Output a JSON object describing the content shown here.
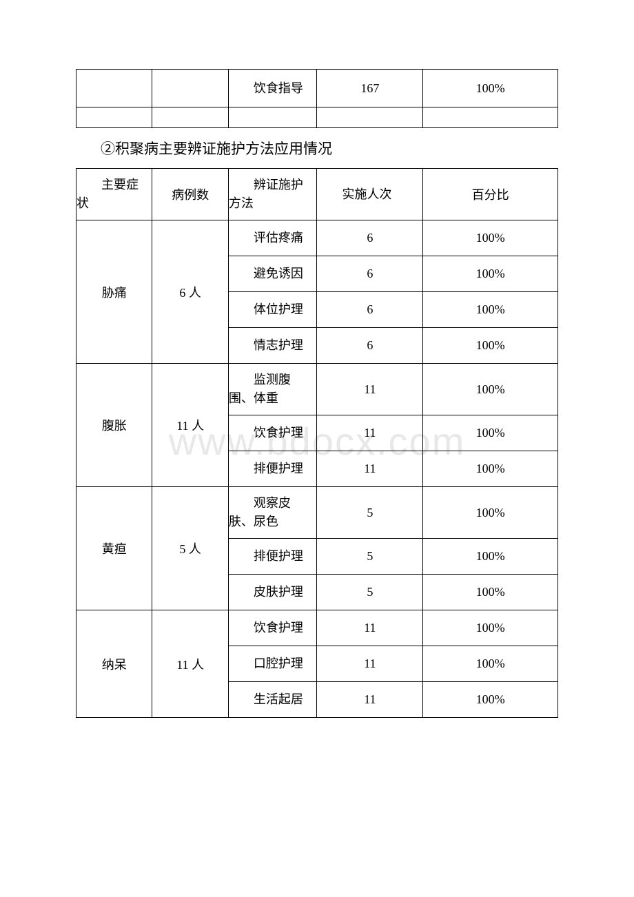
{
  "watermark": "www.bdocx.com",
  "table1": {
    "methodCell": "饮食指导",
    "countCell": "167",
    "percentCell": "100%"
  },
  "sectionTitle": "②积聚病主要辨证施护方法应用情况",
  "table2": {
    "headers": {
      "symptom": "主要症状",
      "cases": "病例数",
      "method": "辨证施护方法",
      "count": "实施人次",
      "percent": "百分比"
    },
    "groups": [
      {
        "symptom": "胁痛",
        "cases": "6 人",
        "rows": [
          {
            "method": "评估疼痛",
            "count": "6",
            "percent": "100%"
          },
          {
            "method": "避免诱因",
            "count": "6",
            "percent": "100%"
          },
          {
            "method": "体位护理",
            "count": "6",
            "percent": "100%"
          },
          {
            "method": "情志护理",
            "count": "6",
            "percent": "100%"
          }
        ]
      },
      {
        "symptom": "腹胀",
        "cases": "11 人",
        "rows": [
          {
            "method": "监测腹围、体重",
            "count": "11",
            "percent": "100%"
          },
          {
            "method": "饮食护理",
            "count": "11",
            "percent": "100%"
          },
          {
            "method": "排便护理",
            "count": "11",
            "percent": "100%"
          }
        ]
      },
      {
        "symptom": "黄疸",
        "cases": "5 人",
        "rows": [
          {
            "method": "观察皮肤、尿色",
            "count": "5",
            "percent": "100%"
          },
          {
            "method": "排便护理",
            "count": "5",
            "percent": "100%"
          },
          {
            "method": "皮肤护理",
            "count": "5",
            "percent": "100%"
          }
        ]
      },
      {
        "symptom": "纳呆",
        "cases": "11 人",
        "rows": [
          {
            "method": "饮食护理",
            "count": "11",
            "percent": "100%"
          },
          {
            "method": "口腔护理",
            "count": "11",
            "percent": "100%"
          },
          {
            "method": "生活起居",
            "count": "11",
            "percent": "100%"
          }
        ]
      }
    ]
  },
  "styles": {
    "border_color": "#000000",
    "background_color": "#ffffff",
    "watermark_color": "#e8e8e8",
    "font_family": "SimSun",
    "body_fontsize": 18,
    "title_fontsize": 21,
    "col_widths_percent": [
      15.8,
      15.8,
      18.4,
      22,
      28
    ]
  }
}
